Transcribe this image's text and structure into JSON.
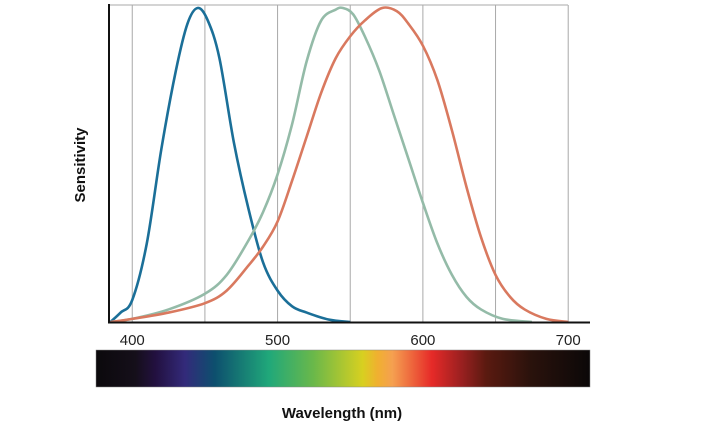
{
  "chart_data": {
    "type": "line",
    "title": "",
    "xlabel": "Wavelength (nm)",
    "ylabel": "Sensitivity",
    "xlim": [
      384,
      715
    ],
    "ylim": [
      0,
      1
    ],
    "x_ticks": [
      "400",
      "500",
      "600",
      "700"
    ],
    "x_tick_values": [
      400,
      500,
      600,
      700
    ],
    "gridlines_x": [
      400,
      450,
      500,
      550,
      600,
      650,
      700
    ],
    "grid": true,
    "legend": "none",
    "spectrum_bar": true,
    "series": [
      {
        "color": "#1b6f98",
        "points": [
          [
            385,
            0
          ],
          [
            392,
            0.03
          ],
          [
            400,
            0.07
          ],
          [
            410,
            0.25
          ],
          [
            420,
            0.55
          ],
          [
            430,
            0.8
          ],
          [
            438,
            0.95
          ],
          [
            445,
            1
          ],
          [
            452,
            0.96
          ],
          [
            460,
            0.84
          ],
          [
            470,
            0.57
          ],
          [
            480,
            0.36
          ],
          [
            490,
            0.19
          ],
          [
            500,
            0.1
          ],
          [
            510,
            0.05
          ],
          [
            520,
            0.03
          ],
          [
            535,
            0.008
          ],
          [
            550,
            0
          ]
        ]
      },
      {
        "color": "#94bba8",
        "points": [
          [
            385,
            0
          ],
          [
            400,
            0.01
          ],
          [
            425,
            0.04
          ],
          [
            450,
            0.09
          ],
          [
            465,
            0.15
          ],
          [
            480,
            0.26
          ],
          [
            490,
            0.35
          ],
          [
            500,
            0.47
          ],
          [
            510,
            0.63
          ],
          [
            520,
            0.83
          ],
          [
            530,
            0.96
          ],
          [
            540,
            0.995
          ],
          [
            545,
            1
          ],
          [
            552,
            0.98
          ],
          [
            560,
            0.91
          ],
          [
            570,
            0.8
          ],
          [
            580,
            0.66
          ],
          [
            590,
            0.52
          ],
          [
            600,
            0.38
          ],
          [
            610,
            0.25
          ],
          [
            620,
            0.15
          ],
          [
            630,
            0.08
          ],
          [
            640,
            0.04
          ],
          [
            655,
            0.01
          ],
          [
            675,
            0
          ]
        ]
      },
      {
        "color": "#d9795f",
        "points": [
          [
            385,
            0
          ],
          [
            400,
            0.01
          ],
          [
            425,
            0.03
          ],
          [
            450,
            0.06
          ],
          [
            465,
            0.1
          ],
          [
            480,
            0.18
          ],
          [
            490,
            0.24
          ],
          [
            500,
            0.32
          ],
          [
            510,
            0.45
          ],
          [
            520,
            0.59
          ],
          [
            530,
            0.73
          ],
          [
            540,
            0.84
          ],
          [
            550,
            0.91
          ],
          [
            560,
            0.96
          ],
          [
            572,
            1
          ],
          [
            582,
            0.99
          ],
          [
            590,
            0.95
          ],
          [
            600,
            0.88
          ],
          [
            610,
            0.77
          ],
          [
            620,
            0.61
          ],
          [
            630,
            0.43
          ],
          [
            640,
            0.27
          ],
          [
            650,
            0.15
          ],
          [
            660,
            0.08
          ],
          [
            670,
            0.04
          ],
          [
            685,
            0.01
          ],
          [
            700,
            0
          ]
        ]
      }
    ],
    "spectrum_colors": [
      "#0b090c",
      "#150f1a",
      "#22103f",
      "#332a7a",
      "#0d4f6e",
      "#20a87a",
      "#6ab84a",
      "#d8d020",
      "#f0b030",
      "#f5a050",
      "#e62a28",
      "#9a2020",
      "#5a1a10",
      "#2a120c",
      "#0b0808"
    ]
  }
}
